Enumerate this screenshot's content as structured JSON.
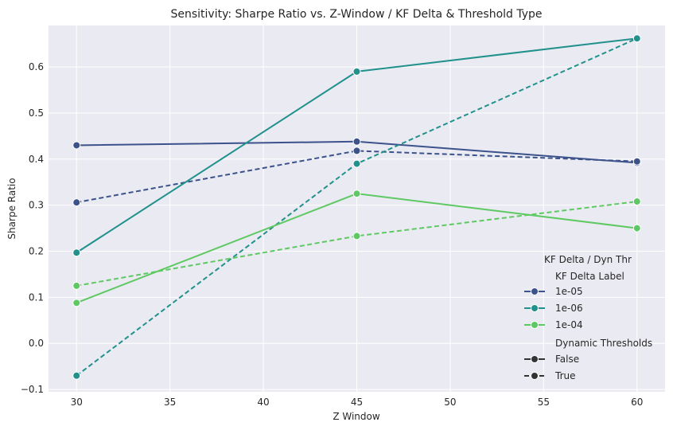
{
  "chart_data": {
    "type": "line",
    "title": "Sensitivity: Sharpe Ratio vs. Z-Window / KF Delta & Threshold Type",
    "xlabel": "Z Window",
    "ylabel": "Sharpe Ratio",
    "x": [
      30,
      45,
      60
    ],
    "xlim": [
      28.5,
      61.5
    ],
    "ylim": [
      -0.105,
      0.69
    ],
    "xticks": [
      "30",
      "35",
      "40",
      "45",
      "50",
      "55",
      "60"
    ],
    "yticks": [
      "−0.1",
      "0.0",
      "0.1",
      "0.2",
      "0.3",
      "0.4",
      "0.5",
      "0.6"
    ],
    "grid": true,
    "legend": {
      "placement": "bottom-right",
      "title": "KF Delta / Dyn Thr",
      "hue_title": "KF Delta Label",
      "style_title": "Dynamic Thresholds",
      "hue_entries": [
        {
          "label": "1e-05",
          "color": "#3b528b"
        },
        {
          "label": "1e-06",
          "color": "#21918c"
        },
        {
          "label": "1e-04",
          "color": "#5ec962"
        }
      ],
      "style_entries": [
        {
          "label": "False",
          "dash": "solid"
        },
        {
          "label": "True",
          "dash": "dashed"
        }
      ]
    },
    "series": [
      {
        "name": "1e-05",
        "dynamic": "False",
        "color": "#3b528b",
        "dashed": false,
        "values": [
          0.43,
          0.438,
          0.392
        ]
      },
      {
        "name": "1e-05",
        "dynamic": "True",
        "color": "#3b528b",
        "dashed": true,
        "values": [
          0.306,
          0.418,
          0.395
        ]
      },
      {
        "name": "1e-06",
        "dynamic": "False",
        "color": "#21918c",
        "dashed": false,
        "values": [
          0.197,
          0.59,
          0.662
        ]
      },
      {
        "name": "1e-06",
        "dynamic": "True",
        "color": "#21918c",
        "dashed": true,
        "values": [
          -0.07,
          0.39,
          0.662
        ]
      },
      {
        "name": "1e-04",
        "dynamic": "False",
        "color": "#5ec962",
        "dashed": false,
        "values": [
          0.088,
          0.325,
          0.25
        ]
      },
      {
        "name": "1e-04",
        "dynamic": "True",
        "color": "#5ec962",
        "dashed": true,
        "values": [
          0.125,
          0.233,
          0.308
        ]
      }
    ]
  }
}
